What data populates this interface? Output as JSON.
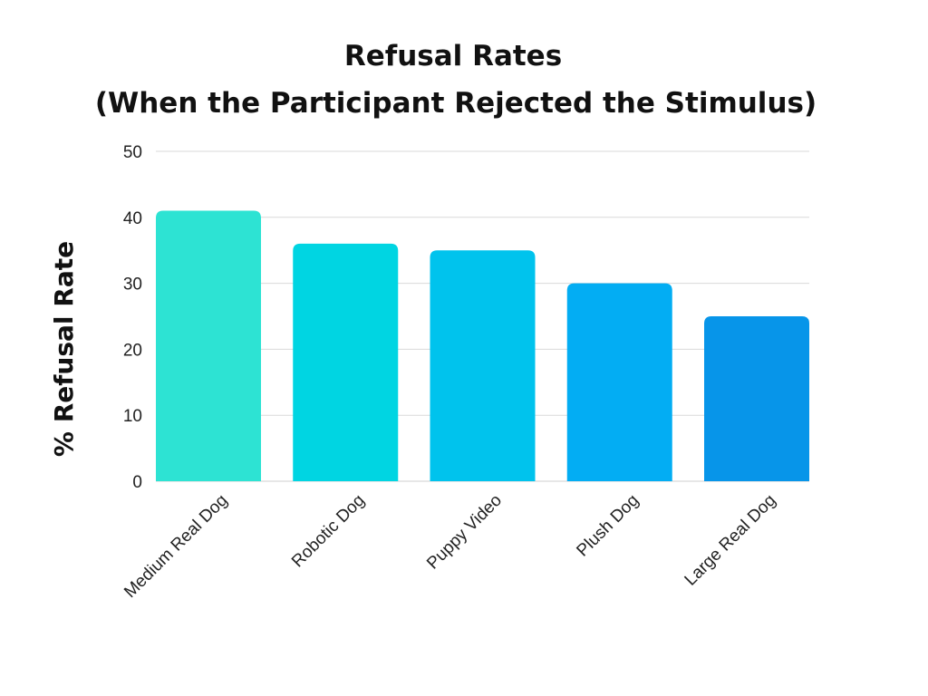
{
  "chart_data": {
    "type": "bar",
    "title_lines": [
      "Refusal Rates",
      "(When the Participant Rejected the Stimulus)"
    ],
    "xlabel": "",
    "ylabel": "% Refusal Rate",
    "categories": [
      "Medium Real Dog",
      "Robotic Dog",
      "Puppy Video",
      "Plush Dog",
      "Large Real Dog"
    ],
    "values": [
      41,
      36,
      35,
      30,
      25
    ],
    "ylim": [
      0,
      50
    ],
    "yticks": [
      0,
      10,
      20,
      30,
      40,
      50
    ],
    "grid": true,
    "legend": "none",
    "bar_colors": [
      "#2de3d3",
      "#00d5e2",
      "#00c3ed",
      "#03adf3",
      "#0795e9"
    ]
  }
}
